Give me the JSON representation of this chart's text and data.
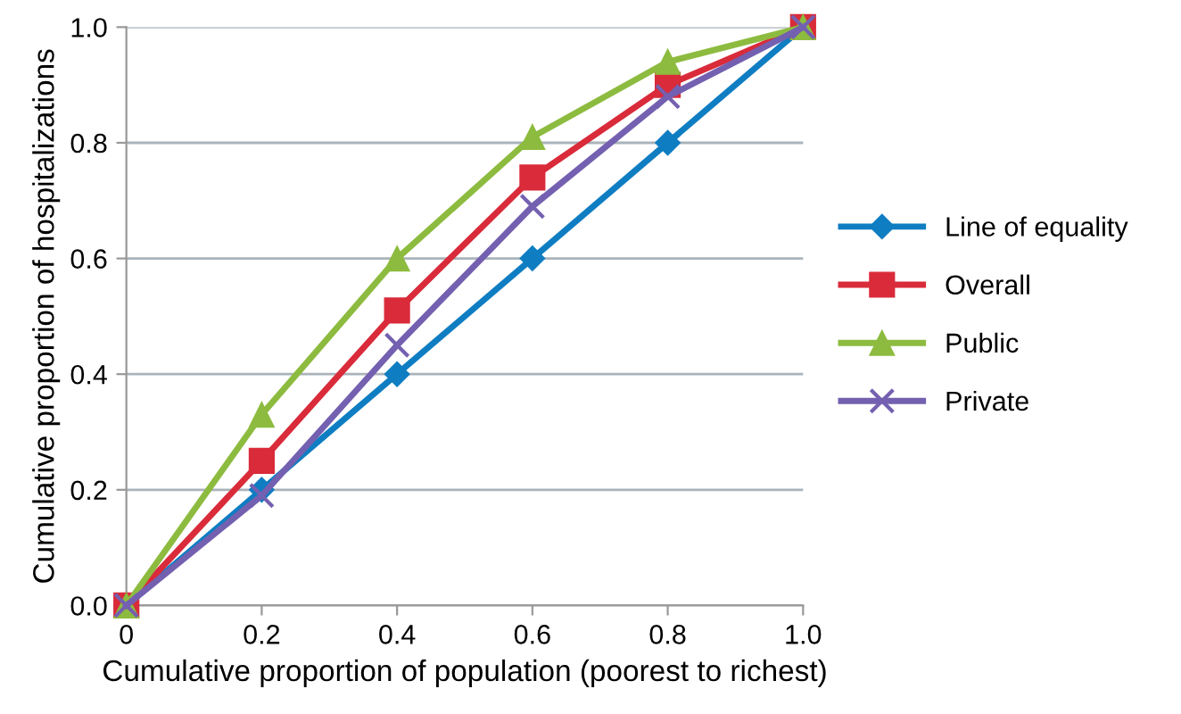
{
  "chart_data": {
    "type": "line",
    "xlabel": "Cumulative proportion of population (poorest to richest)",
    "ylabel": "Cumulative proportion of hospitalizations",
    "x": [
      0,
      0.2,
      0.4,
      0.6,
      0.8,
      1.0
    ],
    "series": [
      {
        "name": "Line of equality",
        "color": "#0f7dc2",
        "marker": "diamond",
        "values": [
          0,
          0.2,
          0.4,
          0.6,
          0.8,
          1.0
        ]
      },
      {
        "name": "Overall",
        "color": "#d92b3a",
        "marker": "square",
        "values": [
          0,
          0.25,
          0.51,
          0.74,
          0.9,
          1.0
        ]
      },
      {
        "name": "Public",
        "color": "#8dbb3f",
        "marker": "triangle",
        "values": [
          0,
          0.33,
          0.6,
          0.81,
          0.94,
          1.0
        ]
      },
      {
        "name": "Private",
        "color": "#7460b0",
        "marker": "cross",
        "values": [
          0,
          0.19,
          0.45,
          0.69,
          0.88,
          1.0
        ]
      }
    ],
    "xlim": [
      0,
      1.0
    ],
    "ylim": [
      0,
      1.0
    ],
    "xticks": [
      0,
      0.2,
      0.4,
      0.6,
      0.8,
      {
        "value": 1.0,
        "label": "1.0"
      }
    ],
    "yticks": [
      {
        "value": 0,
        "label": "0.0"
      },
      0.2,
      0.4,
      0.6,
      0.8,
      {
        "value": 1.0,
        "label": "1.0"
      }
    ],
    "grid": "y",
    "legend": "right",
    "line_style": "solid"
  }
}
